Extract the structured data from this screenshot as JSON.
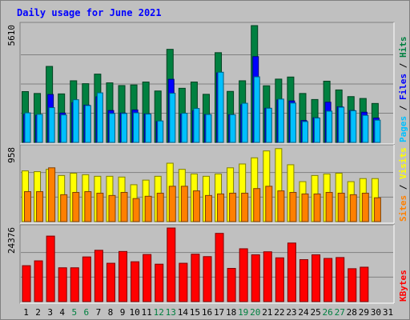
{
  "chart_data": {
    "type": "bar",
    "title": "Daily usage for June 2021",
    "categories": [
      "1",
      "2",
      "3",
      "4",
      "5",
      "6",
      "7",
      "8",
      "9",
      "10",
      "11",
      "12",
      "13",
      "14",
      "15",
      "16",
      "17",
      "18",
      "19",
      "20",
      "21",
      "22",
      "23",
      "24",
      "25",
      "26",
      "27",
      "28",
      "29",
      "30",
      "31"
    ],
    "weekend_days": [
      "5",
      "6",
      "12",
      "13",
      "19",
      "20",
      "26",
      "27"
    ],
    "panels": [
      {
        "name": "hits-files-pages",
        "ymax": 5610,
        "ymax_label": "5610",
        "side_labels": [
          "Pages",
          "Files",
          "Hits"
        ],
        "series": [
          {
            "name": "Hits",
            "color": "#008040",
            "values": [
              2440,
              2350,
              3650,
              2330,
              2960,
              2820,
              3280,
              2860,
              2730,
              2760,
              2900,
              2470,
              4470,
              2600,
              2900,
              2310,
              4310,
              2450,
              2960,
              5610,
              2720,
              3040,
              3140,
              2350,
              2060,
              2940,
              2520,
              2200,
              2110,
              1870,
              null
            ]
          },
          {
            "name": "Files",
            "color": "#0000ff",
            "values": [
              1350,
              1300,
              2300,
              1410,
              1910,
              1790,
              2190,
              1530,
              1410,
              1560,
              1370,
              1000,
              3030,
              1360,
              1520,
              1340,
              3340,
              1330,
              1810,
              4120,
              1640,
              2040,
              1990,
              1050,
              1180,
              1930,
              1710,
              1530,
              1450,
              1170,
              null
            ]
          },
          {
            "name": "Pages",
            "color": "#00c0ff",
            "values": [
              1420,
              1350,
              1670,
              1320,
              2050,
              1770,
              2380,
              1390,
              1390,
              1420,
              1360,
              1030,
              2360,
              1400,
              1630,
              1340,
              3370,
              1330,
              1880,
              3150,
              1640,
              2080,
              1890,
              1000,
              1170,
              1500,
              1690,
              1520,
              1300,
              1070,
              null
            ]
          }
        ]
      },
      {
        "name": "visits-sites",
        "ymax": 958,
        "ymax_label": "958",
        "side_labels": [
          "Sites",
          "Visits"
        ],
        "series": [
          {
            "name": "Visits",
            "color": "#ffff00",
            "values": [
              660,
              650,
              680,
              600,
              630,
              610,
              590,
              590,
              580,
              480,
              540,
              590,
              760,
              680,
              620,
              590,
              620,
              700,
              750,
              830,
              920,
              950,
              740,
              520,
              600,
              620,
              630,
              520,
              560,
              560,
              null
            ]
          },
          {
            "name": "Sites",
            "color": "#ff8000",
            "values": [
              390,
              390,
              700,
              350,
              380,
              390,
              370,
              340,
              380,
              300,
              330,
              370,
              460,
              460,
              400,
              340,
              360,
              370,
              370,
              430,
              460,
              400,
              380,
              360,
              360,
              380,
              370,
              350,
              370,
              310,
              null
            ]
          }
        ]
      },
      {
        "name": "kbytes",
        "ymax": 24376,
        "ymax_label": "24376",
        "side_labels": [
          "KBytes"
        ],
        "series": [
          {
            "name": "KBytes",
            "color": "#ff0000",
            "values": [
              11900,
              13500,
              21700,
              11200,
              11200,
              14800,
              17000,
              12700,
              16600,
              13200,
              15600,
              12400,
              24376,
              12700,
              15700,
              14900,
              22600,
              11000,
              17500,
              15500,
              16500,
              14500,
              19400,
              13900,
              15500,
              14300,
              14600,
              10900,
              11400,
              null,
              null
            ]
          }
        ]
      }
    ]
  }
}
